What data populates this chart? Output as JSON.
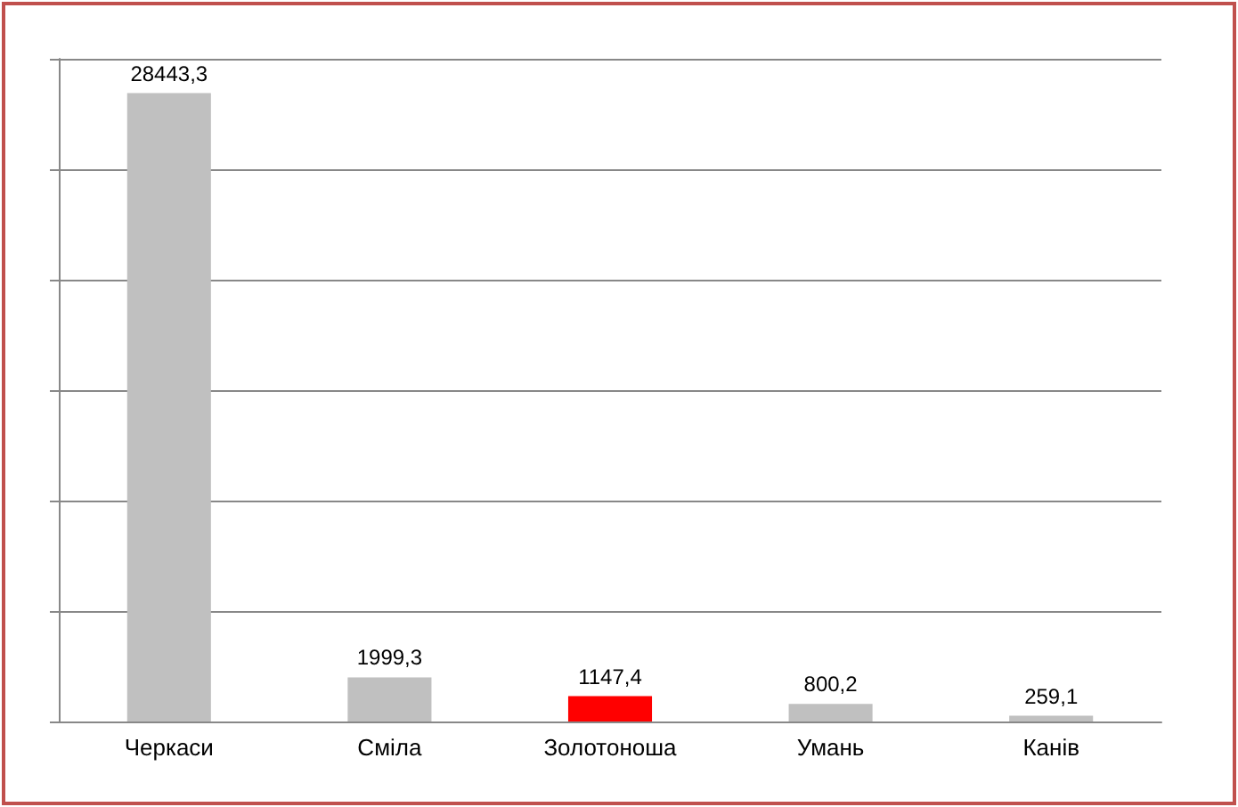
{
  "chart_data": {
    "type": "bar",
    "categories": [
      "Черкаси",
      "Сміла",
      "Золотоноша",
      "Умань",
      "Канів"
    ],
    "values": [
      28443.3,
      1999.3,
      1147.4,
      800.2,
      259.1
    ],
    "colors": [
      "#c0c0c0",
      "#c0c0c0",
      "#ff0000",
      "#c0c0c0",
      "#c0c0c0"
    ],
    "value_labels": [
      "28443,3",
      "1999,3",
      "1147,4",
      "800,2",
      "259,1"
    ],
    "ylim": [
      0,
      30000
    ],
    "yticks": [
      {
        "value": 0,
        "label": null
      },
      {
        "value": 5000,
        "label": null
      },
      {
        "value": 10000,
        "label": null
      },
      {
        "value": 15000,
        "label": null
      },
      {
        "value": 20000,
        "label": null
      },
      {
        "value": 25000,
        "label": null
      },
      {
        "value": 30000,
        "label": null
      }
    ],
    "grid": true
  }
}
